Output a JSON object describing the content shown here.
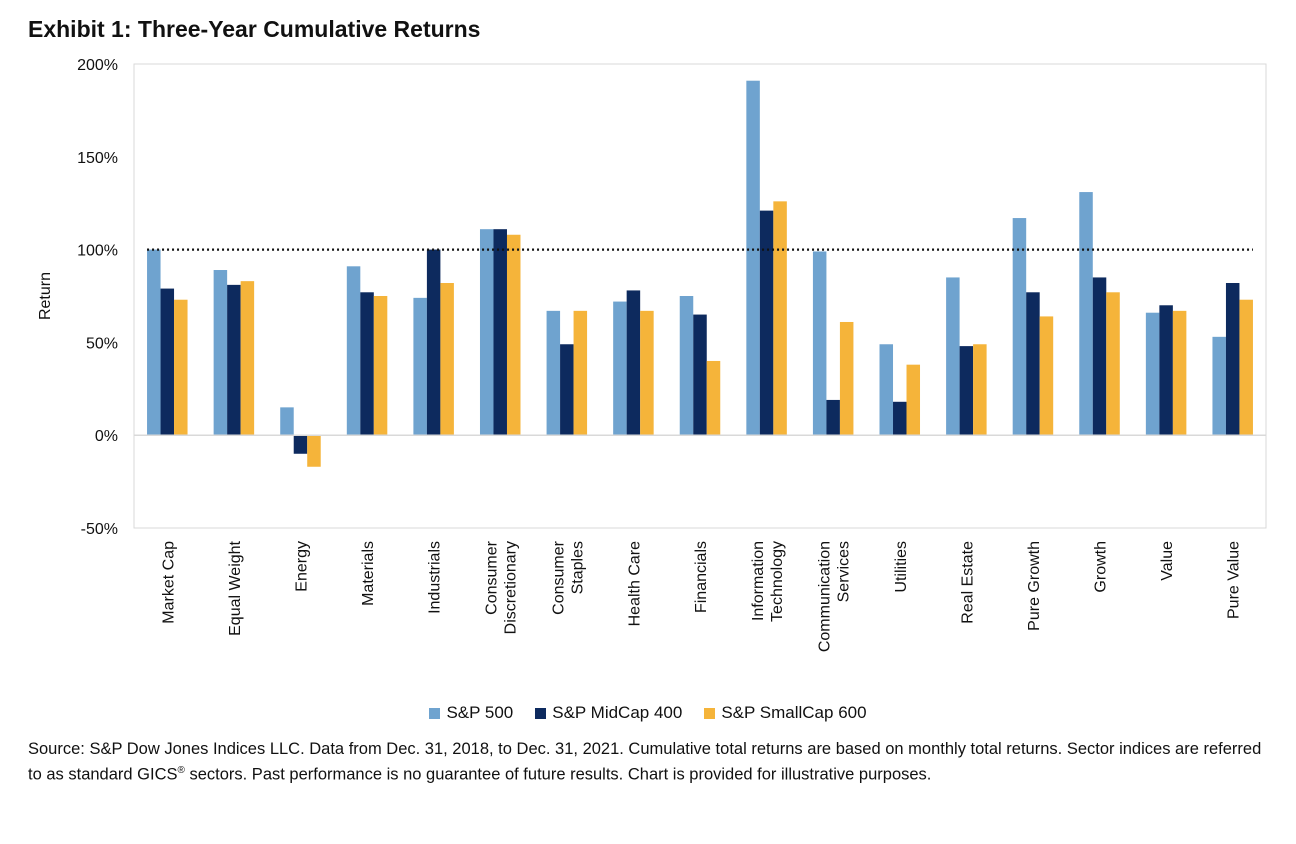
{
  "title": "Exhibit 1: Three-Year Cumulative Returns",
  "source": {
    "part1": "Source: S&P Dow Jones Indices LLC. Data from Dec. 31, 2018, to Dec. 31, 2021. Cumulative total returns are based on monthly total returns. Sector indices are referred to as standard GICS",
    "sup": "®",
    "part2": " sectors. Past performance is no guarantee of future results. Chart is provided for illustrative purposes."
  },
  "chart_data": {
    "type": "bar",
    "title": "Exhibit 1: Three-Year Cumulative Returns",
    "ylabel": "Return",
    "xlabel": "",
    "ylim": [
      -50,
      200
    ],
    "yticks": [
      -50,
      0,
      50,
      100,
      150,
      200
    ],
    "ytick_labels": [
      "-50%",
      "0%",
      "50%",
      "100%",
      "150%",
      "200%"
    ],
    "reference_line": 100,
    "legend_position": "bottom",
    "categories": [
      [
        "Market Cap"
      ],
      [
        "Equal Weight"
      ],
      [
        "Energy"
      ],
      [
        "Materials"
      ],
      [
        "Industrials"
      ],
      [
        "Consumer",
        "Discretionary"
      ],
      [
        "Consumer",
        "Staples"
      ],
      [
        "Health Care"
      ],
      [
        "Financials"
      ],
      [
        "Information",
        "Technology"
      ],
      [
        "Communication",
        "Services"
      ],
      [
        "Utilities"
      ],
      [
        "Real Estate"
      ],
      [
        "Pure Growth"
      ],
      [
        "Growth"
      ],
      [
        "Value"
      ],
      [
        "Pure Value"
      ]
    ],
    "series": [
      {
        "name": "S&P 500",
        "color": "#6fa3cf",
        "values": [
          100,
          89,
          15,
          91,
          74,
          111,
          67,
          72,
          75,
          191,
          99,
          49,
          85,
          117,
          131,
          66,
          53
        ]
      },
      {
        "name": "S&P MidCap 400",
        "color": "#0d2a5e",
        "values": [
          79,
          81,
          -10,
          77,
          100,
          111,
          49,
          78,
          65,
          121,
          19,
          18,
          48,
          77,
          85,
          70,
          82
        ]
      },
      {
        "name": "S&P SmallCap 600",
        "color": "#f5b43a",
        "values": [
          73,
          83,
          -17,
          75,
          82,
          108,
          67,
          67,
          40,
          126,
          61,
          38,
          49,
          64,
          77,
          67,
          73
        ]
      }
    ]
  }
}
